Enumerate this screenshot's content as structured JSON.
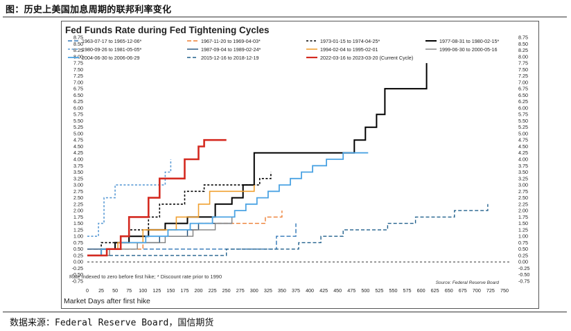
{
  "caption": "图：历史上美国加息周期的联邦利率变化",
  "footer": "数据来源：Federal Reserve Board，国信期货",
  "chart_data": {
    "type": "line",
    "title": "Fed Funds Rate during Fed Tightening Cycles",
    "xlabel": "Market Days after first hike",
    "ylabel": "",
    "xlim": [
      0,
      750
    ],
    "ylim": [
      -0.75,
      8.75
    ],
    "xticks": [
      0,
      25,
      50,
      75,
      100,
      125,
      150,
      175,
      200,
      225,
      250,
      275,
      300,
      325,
      350,
      375,
      400,
      425,
      450,
      475,
      500,
      525,
      550,
      575,
      600,
      625,
      650,
      675,
      700,
      725,
      750
    ],
    "yticks": [
      -0.75,
      -0.5,
      -0.25,
      0,
      0.25,
      0.5,
      0.75,
      1,
      1.25,
      1.5,
      1.75,
      2,
      2.25,
      2.5,
      2.75,
      3,
      3.25,
      3.5,
      3.75,
      4,
      4.25,
      4.5,
      4.75,
      5,
      5.25,
      5.5,
      5.75,
      6,
      6.25,
      6.5,
      6.75,
      7,
      7.25,
      7.5,
      7.75,
      8,
      8.25,
      8.5,
      8.75
    ],
    "ytick_labels": [
      "-0.75",
      "-0.50",
      "-0.25",
      "0.00",
      "0.25",
      "0.50",
      "0.75",
      "1.00",
      "1.25",
      "1.50",
      "1.75",
      "2.00",
      "2.25",
      "2.50",
      "2.75",
      "3.00",
      "3.25",
      "3.50",
      "3.75",
      "4.00",
      "4.25",
      "4.50",
      "4.75",
      "5.00",
      "5.25",
      "5.50",
      "5.75",
      "6.00",
      "6.25",
      "6.50",
      "6.75",
      "7.00",
      "7.25",
      "7.50",
      "7.75",
      "8.00",
      "8.25",
      "8.50",
      "8.75"
    ],
    "grid": false,
    "legend_position": "top",
    "notes": "Rate indexed to zero before first hike; * Discount rate prior to 1990",
    "source_note": "Source: Federal Reserve Board",
    "series": [
      {
        "name": "1963-07-17 to 1965-12-06*",
        "color": "#2e75b6",
        "dash": "long",
        "width": 1.4,
        "points": [
          [
            0,
            0.5
          ],
          [
            340,
            0.5
          ],
          [
            340,
            1.0
          ],
          [
            375,
            1.0
          ],
          [
            375,
            1.5
          ]
        ]
      },
      {
        "name": "1967-11-20 to 1969-04-03*",
        "color": "#ed7d31",
        "dash": "long",
        "width": 1.4,
        "points": [
          [
            0,
            0.5
          ],
          [
            100,
            0.5
          ],
          [
            100,
            1.0
          ],
          [
            110,
            1.0
          ],
          [
            110,
            1.25
          ],
          [
            200,
            1.25
          ],
          [
            200,
            1.5
          ],
          [
            320,
            1.5
          ],
          [
            320,
            1.75
          ],
          [
            350,
            1.75
          ],
          [
            350,
            2.0
          ]
        ]
      },
      {
        "name": "1973-01-15 to 1974-04-25*",
        "color": "#000000",
        "dash": "short",
        "width": 1.6,
        "points": [
          [
            0,
            0.25
          ],
          [
            25,
            0.25
          ],
          [
            25,
            0.75
          ],
          [
            75,
            0.75
          ],
          [
            75,
            1.25
          ],
          [
            110,
            1.25
          ],
          [
            110,
            1.75
          ],
          [
            130,
            1.75
          ],
          [
            130,
            2.25
          ],
          [
            175,
            2.25
          ],
          [
            175,
            2.75
          ],
          [
            210,
            2.75
          ],
          [
            210,
            3.0
          ],
          [
            310,
            3.0
          ],
          [
            310,
            3.25
          ],
          [
            330,
            3.25
          ],
          [
            330,
            3.5
          ]
        ]
      },
      {
        "name": "1977-08-31 to 1980-02-15*",
        "color": "#000000",
        "dash": "",
        "width": 2,
        "points": [
          [
            0,
            0.25
          ],
          [
            25,
            0.25
          ],
          [
            25,
            0.5
          ],
          [
            50,
            0.5
          ],
          [
            50,
            0.75
          ],
          [
            75,
            0.75
          ],
          [
            75,
            1.0
          ],
          [
            110,
            1.0
          ],
          [
            110,
            1.25
          ],
          [
            140,
            1.25
          ],
          [
            140,
            1.5
          ],
          [
            180,
            1.5
          ],
          [
            180,
            1.75
          ],
          [
            230,
            1.75
          ],
          [
            230,
            2.25
          ],
          [
            260,
            2.25
          ],
          [
            260,
            2.5
          ],
          [
            280,
            2.5
          ],
          [
            280,
            3.0
          ],
          [
            300,
            3.0
          ],
          [
            300,
            4.25
          ],
          [
            480,
            4.25
          ],
          [
            480,
            4.75
          ],
          [
            500,
            4.75
          ],
          [
            500,
            5.25
          ],
          [
            520,
            5.25
          ],
          [
            520,
            5.75
          ],
          [
            535,
            5.75
          ],
          [
            535,
            6.75
          ],
          [
            610,
            6.75
          ],
          [
            610,
            7.75
          ]
        ]
      },
      {
        "name": "1980-09-26 to 1981-05-05*",
        "color": "#5b9bd5",
        "dash": "short",
        "width": 1.6,
        "points": [
          [
            0,
            1.0
          ],
          [
            20,
            1.0
          ],
          [
            20,
            1.5
          ],
          [
            30,
            1.5
          ],
          [
            30,
            2.5
          ],
          [
            50,
            2.5
          ],
          [
            50,
            3.0
          ],
          [
            140,
            3.0
          ],
          [
            140,
            3.5
          ],
          [
            150,
            3.5
          ],
          [
            150,
            4.0
          ]
        ]
      },
      {
        "name": "1987-09-04 to 1989-02-24*",
        "color": "#1f4e79",
        "dash": "",
        "width": 1.4,
        "points": [
          [
            0,
            0.5
          ],
          [
            60,
            0.5
          ],
          [
            60,
            0.75
          ],
          [
            130,
            0.75
          ],
          [
            130,
            1.0
          ],
          [
            180,
            1.0
          ],
          [
            180,
            1.25
          ],
          [
            200,
            1.25
          ],
          [
            200,
            1.5
          ],
          [
            260,
            1.5
          ]
        ]
      },
      {
        "name": "1994-02-04 to 1995-02-01",
        "color": "#f0a030",
        "dash": "",
        "width": 1.6,
        "points": [
          [
            0,
            0.25
          ],
          [
            25,
            0.25
          ],
          [
            25,
            0.5
          ],
          [
            55,
            0.5
          ],
          [
            55,
            0.75
          ],
          [
            100,
            0.75
          ],
          [
            100,
            1.25
          ],
          [
            160,
            1.25
          ],
          [
            160,
            1.75
          ],
          [
            200,
            1.75
          ],
          [
            200,
            2.25
          ],
          [
            220,
            2.25
          ],
          [
            220,
            2.75
          ],
          [
            300,
            2.75
          ],
          [
            300,
            3.0
          ]
        ]
      },
      {
        "name": "1999-06-30 to 2000-05-16",
        "color": "#808080",
        "dash": "",
        "width": 1.4,
        "points": [
          [
            0,
            0.25
          ],
          [
            40,
            0.25
          ],
          [
            40,
            0.5
          ],
          [
            90,
            0.5
          ],
          [
            90,
            0.75
          ],
          [
            140,
            0.75
          ],
          [
            140,
            1.0
          ],
          [
            190,
            1.0
          ],
          [
            190,
            1.25
          ],
          [
            230,
            1.25
          ],
          [
            230,
            1.5
          ],
          [
            260,
            1.5
          ],
          [
            260,
            1.75
          ]
        ]
      },
      {
        "name": "2004-06-30 to 2006-06-29",
        "color": "#4ba3e3",
        "dash": "",
        "width": 1.8,
        "points": [
          [
            0,
            0.25
          ],
          [
            25,
            0.25
          ],
          [
            25,
            0.5
          ],
          [
            60,
            0.5
          ],
          [
            60,
            0.75
          ],
          [
            105,
            0.75
          ],
          [
            105,
            1.0
          ],
          [
            145,
            1.0
          ],
          [
            145,
            1.25
          ],
          [
            185,
            1.25
          ],
          [
            185,
            1.5
          ],
          [
            225,
            1.5
          ],
          [
            225,
            1.75
          ],
          [
            265,
            1.75
          ],
          [
            265,
            2.0
          ],
          [
            285,
            2.0
          ],
          [
            285,
            2.25
          ],
          [
            305,
            2.25
          ],
          [
            305,
            2.5
          ],
          [
            325,
            2.5
          ],
          [
            325,
            2.75
          ],
          [
            345,
            2.75
          ],
          [
            345,
            3.0
          ],
          [
            365,
            3.0
          ],
          [
            365,
            3.25
          ],
          [
            385,
            3.25
          ],
          [
            385,
            3.5
          ],
          [
            405,
            3.5
          ],
          [
            405,
            3.75
          ],
          [
            430,
            3.75
          ],
          [
            430,
            4.0
          ],
          [
            460,
            4.0
          ],
          [
            460,
            4.25
          ],
          [
            505,
            4.25
          ]
        ]
      },
      {
        "name": "2015-12-16 to 2018-12-19",
        "color": "#1f5f8b",
        "dash": "medium",
        "width": 1.4,
        "points": [
          [
            0,
            0.25
          ],
          [
            250,
            0.25
          ],
          [
            250,
            0.5
          ],
          [
            380,
            0.5
          ],
          [
            380,
            0.75
          ],
          [
            420,
            0.75
          ],
          [
            420,
            1.0
          ],
          [
            460,
            1.0
          ],
          [
            460,
            1.25
          ],
          [
            540,
            1.25
          ],
          [
            540,
            1.5
          ],
          [
            590,
            1.5
          ],
          [
            590,
            1.75
          ],
          [
            660,
            1.75
          ],
          [
            660,
            2.0
          ],
          [
            720,
            2.0
          ],
          [
            720,
            2.25
          ]
        ]
      },
      {
        "name": "2022-03-16 to 2023-03-20 (Current Cycle)",
        "color": "#d42a20",
        "dash": "",
        "width": 2.6,
        "points": [
          [
            0,
            0.25
          ],
          [
            35,
            0.25
          ],
          [
            35,
            0.5
          ],
          [
            60,
            0.5
          ],
          [
            60,
            1.0
          ],
          [
            75,
            1.0
          ],
          [
            75,
            1.75
          ],
          [
            110,
            1.75
          ],
          [
            110,
            2.5
          ],
          [
            130,
            2.5
          ],
          [
            130,
            3.25
          ],
          [
            175,
            3.25
          ],
          [
            175,
            4.0
          ],
          [
            200,
            4.0
          ],
          [
            200,
            4.5
          ],
          [
            210,
            4.5
          ],
          [
            210,
            4.75
          ],
          [
            250,
            4.75
          ]
        ]
      }
    ]
  }
}
